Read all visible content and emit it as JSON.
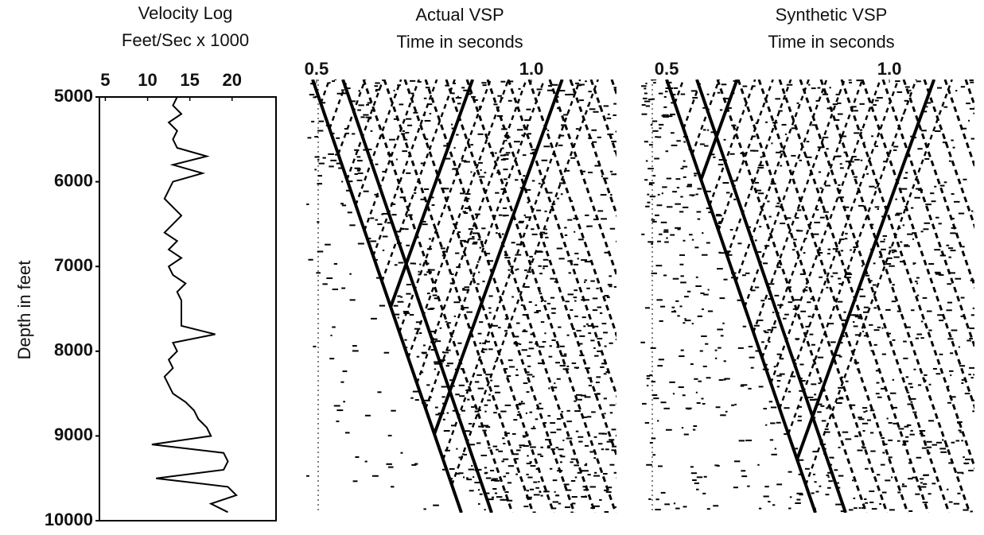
{
  "chart_data": [
    {
      "type": "line",
      "title": "Velocity Log",
      "subtitle": "Feet/Sec x 1000",
      "y_label": "Depth in feet",
      "orientation": "vertical",
      "color": "#000000",
      "x": [
        5000,
        5100,
        5200,
        5300,
        5400,
        5500,
        5600,
        5700,
        5800,
        5900,
        6000,
        6100,
        6200,
        6300,
        6400,
        6500,
        6600,
        6700,
        6800,
        6900,
        7000,
        7100,
        7200,
        7300,
        7400,
        7500,
        7600,
        7700,
        7800,
        7900,
        8000,
        8100,
        8200,
        8300,
        8400,
        8500,
        8600,
        8700,
        8800,
        8900,
        9000,
        9100,
        9200,
        9300,
        9400,
        9500,
        9600,
        9700,
        9800,
        9900
      ],
      "values": [
        13.5,
        13,
        14,
        12.5,
        13.5,
        13,
        13.5,
        17,
        13,
        16.5,
        13,
        12.5,
        12,
        13,
        14,
        13,
        12,
        13.5,
        12.5,
        14,
        12.5,
        13,
        14.5,
        13.5,
        14,
        14,
        14,
        14,
        18,
        13,
        13.5,
        12.5,
        13,
        12,
        12.5,
        13,
        14.5,
        15.5,
        16,
        17,
        17.5,
        10.5,
        19,
        19.5,
        19,
        11,
        19.5,
        20.5,
        17.5,
        19.5
      ],
      "xlim": [
        4.3,
        25.2
      ],
      "xticks": [
        5,
        10,
        15,
        20
      ],
      "ylim": [
        5000,
        10000
      ],
      "yticks": [
        5000,
        6000,
        7000,
        8000,
        9000,
        10000
      ]
    },
    {
      "type": "image",
      "title": "Actual VSP",
      "subtitle": "Time in seconds",
      "xlim": [
        0.476,
        1.198
      ],
      "xticks": [
        0.5,
        {
          "value": 1,
          "label": "1.0"
        }
      ]
    },
    {
      "type": "image",
      "title": "Synthetic VSP",
      "subtitle": "Time in seconds",
      "xlim": [
        0.441,
        1.191
      ],
      "xticks": [
        0.5,
        {
          "value": 1,
          "label": "1.0"
        }
      ]
    }
  ]
}
